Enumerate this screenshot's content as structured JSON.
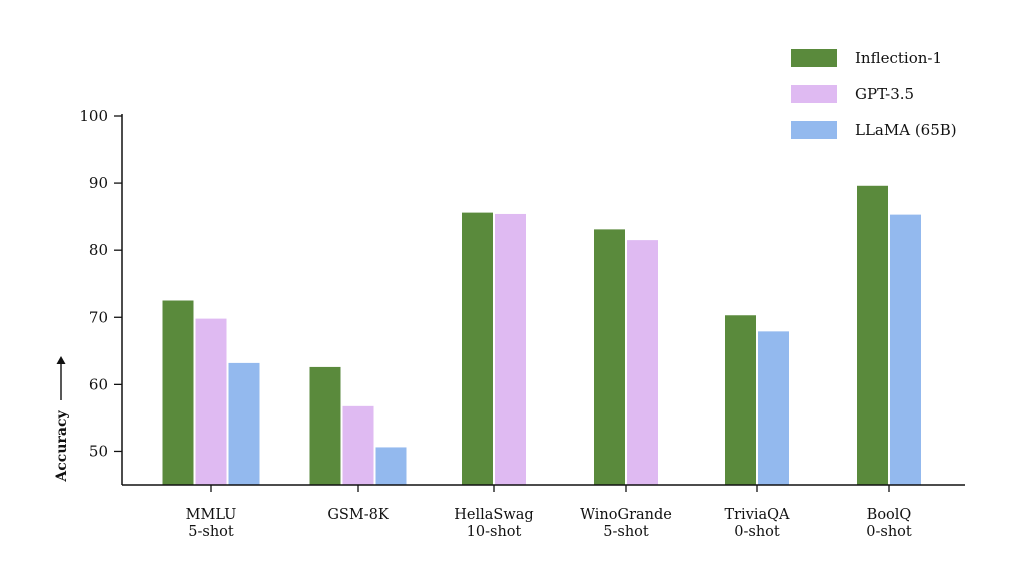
{
  "chart_data": {
    "type": "bar",
    "categories": [
      [
        "MMLU",
        "5-shot"
      ],
      [
        "GSM-8K"
      ],
      [
        "HellaSwag",
        "10-shot"
      ],
      [
        "WinoGrande",
        "5-shot"
      ],
      [
        "TriviaQA",
        "0-shot"
      ],
      [
        "BoolQ",
        "0-shot"
      ]
    ],
    "series": [
      {
        "name": "Inflection-1",
        "color": "#5a8a3c",
        "values": [
          72.5,
          62.6,
          85.6,
          83.1,
          70.3,
          89.6
        ]
      },
      {
        "name": "GPT-3.5",
        "color": "#dfbaf2",
        "values": [
          69.8,
          56.8,
          85.4,
          81.5,
          null,
          null
        ]
      },
      {
        "name": "LLaMA (65B)",
        "color": "#93b9ee",
        "values": [
          63.2,
          50.6,
          null,
          null,
          67.9,
          85.3
        ]
      }
    ],
    "title": "",
    "xlabel": "",
    "ylabel": "Accuracy",
    "ylim": [
      45,
      100
    ],
    "yticks": [
      50,
      60,
      70,
      80,
      90,
      100
    ],
    "grid": false,
    "legend_position": "top-right"
  }
}
